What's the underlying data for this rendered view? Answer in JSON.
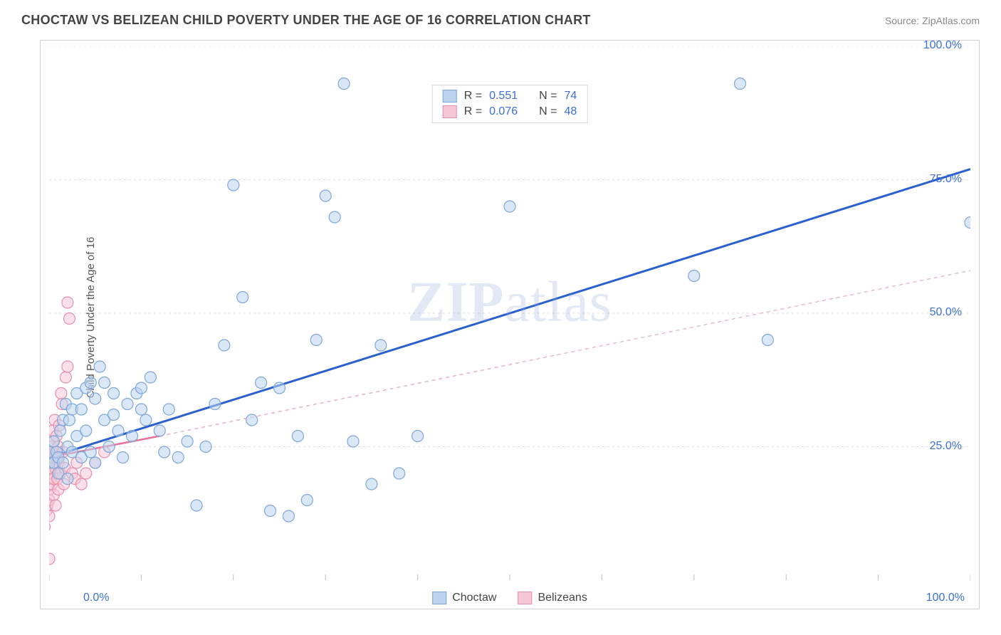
{
  "header": {
    "title": "CHOCTAW VS BELIZEAN CHILD POVERTY UNDER THE AGE OF 16 CORRELATION CHART",
    "source": "Source: ZipAtlas.com"
  },
  "y_axis_label": "Child Poverty Under the Age of 16",
  "watermark": {
    "bold": "ZIP",
    "rest": "atlas"
  },
  "chart": {
    "type": "scatter",
    "xlim": [
      0,
      100
    ],
    "ylim": [
      0,
      100
    ],
    "x_ticks": [
      0,
      10,
      20,
      30,
      40,
      50,
      60,
      70,
      80,
      90,
      100
    ],
    "y_ticks": [
      25,
      50,
      75,
      100
    ],
    "x_min_label": "0.0%",
    "x_max_label": "100.0%",
    "y_tick_labels": [
      "25.0%",
      "50.0%",
      "75.0%",
      "100.0%"
    ],
    "grid_color": "#dcdcdc",
    "axis_color": "#bcbcbc",
    "background_color": "#ffffff",
    "marker_radius": 8,
    "marker_stroke_width": 1.2,
    "series": [
      {
        "name": "Choctaw",
        "fill": "#bcd3ef",
        "stroke": "#7fa6d8",
        "fill_opacity": 0.55,
        "r_value": "0.551",
        "n_value": "74",
        "regression": {
          "x1": 0,
          "y1": 23,
          "x2": 100,
          "y2": 77,
          "stroke": "#2a5fd0",
          "width": 3,
          "dash": "none"
        },
        "points": [
          [
            0,
            22
          ],
          [
            0,
            24
          ],
          [
            0.5,
            22
          ],
          [
            0.5,
            26
          ],
          [
            0.8,
            24
          ],
          [
            1,
            20
          ],
          [
            1,
            23
          ],
          [
            1.2,
            28
          ],
          [
            1.5,
            22
          ],
          [
            1.5,
            30
          ],
          [
            1.8,
            33
          ],
          [
            2,
            19
          ],
          [
            2,
            25
          ],
          [
            2.2,
            30
          ],
          [
            2.5,
            24
          ],
          [
            2.5,
            32
          ],
          [
            3,
            27
          ],
          [
            3,
            35
          ],
          [
            3.5,
            32
          ],
          [
            3.5,
            23
          ],
          [
            4,
            36
          ],
          [
            4,
            28
          ],
          [
            4.5,
            24
          ],
          [
            4.5,
            37
          ],
          [
            5,
            22
          ],
          [
            5,
            34
          ],
          [
            5.5,
            40
          ],
          [
            6,
            37
          ],
          [
            6,
            30
          ],
          [
            6.5,
            25
          ],
          [
            7,
            31
          ],
          [
            7,
            35
          ],
          [
            7.5,
            28
          ],
          [
            8,
            23
          ],
          [
            8.5,
            33
          ],
          [
            9,
            27
          ],
          [
            9.5,
            35
          ],
          [
            10,
            32
          ],
          [
            10,
            36
          ],
          [
            10.5,
            30
          ],
          [
            11,
            38
          ],
          [
            12,
            28
          ],
          [
            12.5,
            24
          ],
          [
            13,
            32
          ],
          [
            14,
            23
          ],
          [
            15,
            26
          ],
          [
            16,
            14
          ],
          [
            17,
            25
          ],
          [
            18,
            33
          ],
          [
            19,
            44
          ],
          [
            20,
            74
          ],
          [
            21,
            53
          ],
          [
            22,
            30
          ],
          [
            23,
            37
          ],
          [
            24,
            13
          ],
          [
            25,
            36
          ],
          [
            26,
            12
          ],
          [
            27,
            27
          ],
          [
            28,
            15
          ],
          [
            29,
            45
          ],
          [
            30,
            72
          ],
          [
            31,
            68
          ],
          [
            32,
            93
          ],
          [
            33,
            26
          ],
          [
            35,
            18
          ],
          [
            36,
            44
          ],
          [
            38,
            20
          ],
          [
            40,
            27
          ],
          [
            45,
            88
          ],
          [
            50,
            70
          ],
          [
            70,
            57
          ],
          [
            75,
            93
          ],
          [
            78,
            45
          ],
          [
            100,
            67
          ]
        ]
      },
      {
        "name": "Belizeans",
        "fill": "#f5c7d5",
        "stroke": "#e58fab",
        "fill_opacity": 0.55,
        "r_value": "0.076",
        "n_value": "48",
        "regression": {
          "x1": 0,
          "y1": 23,
          "x2": 12,
          "y2": 27,
          "stroke": "#e77399",
          "width": 2.5,
          "dash": "none"
        },
        "extrapolation": {
          "x1": 12,
          "y1": 27,
          "x2": 100,
          "y2": 58,
          "stroke": "#e7a5b9",
          "width": 1.2,
          "dash": "5,5"
        },
        "points": [
          [
            -0.5,
            10
          ],
          [
            -0.3,
            13
          ],
          [
            -0.2,
            14
          ],
          [
            0,
            4
          ],
          [
            0,
            12
          ],
          [
            0,
            15
          ],
          [
            0,
            17
          ],
          [
            0,
            19
          ],
          [
            0,
            20
          ],
          [
            0,
            22
          ],
          [
            0.2,
            23
          ],
          [
            0.2,
            24
          ],
          [
            0.2,
            25
          ],
          [
            0.3,
            18
          ],
          [
            0.3,
            21
          ],
          [
            0.4,
            26
          ],
          [
            0.4,
            28
          ],
          [
            0.5,
            16
          ],
          [
            0.5,
            19
          ],
          [
            0.5,
            22
          ],
          [
            0.6,
            24
          ],
          [
            0.6,
            30
          ],
          [
            0.7,
            14
          ],
          [
            0.7,
            21
          ],
          [
            0.8,
            23
          ],
          [
            0.8,
            27
          ],
          [
            0.9,
            19
          ],
          [
            1,
            17
          ],
          [
            1,
            22
          ],
          [
            1,
            25
          ],
          [
            1.1,
            29
          ],
          [
            1.2,
            20
          ],
          [
            1.3,
            35
          ],
          [
            1.4,
            33
          ],
          [
            1.5,
            24
          ],
          [
            1.6,
            18
          ],
          [
            1.7,
            21
          ],
          [
            1.8,
            38
          ],
          [
            2,
            40
          ],
          [
            2,
            52
          ],
          [
            2.2,
            49
          ],
          [
            2.5,
            20
          ],
          [
            2.8,
            19
          ],
          [
            3,
            22
          ],
          [
            3.5,
            18
          ],
          [
            4,
            20
          ],
          [
            5,
            22
          ],
          [
            6,
            24
          ]
        ]
      }
    ]
  },
  "stats_legend": {
    "rows": [
      {
        "swatch_fill": "#bcd3ef",
        "swatch_stroke": "#7fa6d8",
        "r_label": "R  =",
        "r_val": "0.551",
        "n_label": "N  =",
        "n_val": "74"
      },
      {
        "swatch_fill": "#f5c7d5",
        "swatch_stroke": "#e58fab",
        "r_label": "R  =",
        "r_val": "0.076",
        "n_label": "N  =",
        "n_val": "48"
      }
    ]
  },
  "bottom_legend": {
    "items": [
      {
        "label": "Choctaw",
        "fill": "#bcd3ef",
        "stroke": "#7fa6d8"
      },
      {
        "label": "Belizeans",
        "fill": "#f5c7d5",
        "stroke": "#e58fab"
      }
    ]
  }
}
